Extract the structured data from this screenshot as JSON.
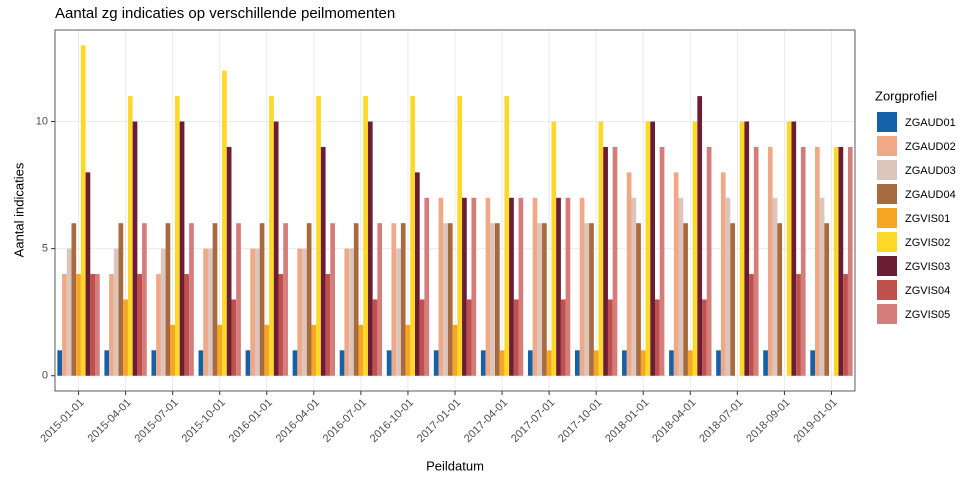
{
  "chart_data": {
    "type": "bar",
    "title": "Aantal zg indicaties op verschillende peilmomenten",
    "x_label": "Peildatum",
    "y_label": "Aantal indicaties",
    "legend_title": "Zorgprofiel",
    "categories": [
      "2015-01-01",
      "2015-04-01",
      "2015-07-01",
      "2015-10-01",
      "2016-01-01",
      "2016-04-01",
      "2016-07-01",
      "2016-10-01",
      "2017-01-01",
      "2017-04-01",
      "2017-07-01",
      "2017-10-01",
      "2018-01-01",
      "2018-04-01",
      "2018-07-01",
      "2018-09-01",
      "2019-01-01"
    ],
    "series": [
      {
        "name": "ZGAUD01",
        "color": "#1461a8",
        "values": [
          1,
          1,
          1,
          1,
          1,
          1,
          1,
          1,
          1,
          1,
          1,
          1,
          1,
          1,
          1,
          1,
          1
        ]
      },
      {
        "name": "ZGAUD02",
        "color": "#f0a987",
        "values": [
          4,
          4,
          4,
          5,
          5,
          5,
          5,
          6,
          7,
          7,
          7,
          7,
          8,
          8,
          8,
          9,
          9
        ]
      },
      {
        "name": "ZGAUD03",
        "color": "#dcc5bd",
        "values": [
          5,
          5,
          5,
          5,
          5,
          5,
          5,
          5,
          6,
          6,
          6,
          6,
          7,
          7,
          7,
          7,
          7
        ]
      },
      {
        "name": "ZGAUD04",
        "color": "#a86b3f",
        "values": [
          6,
          6,
          6,
          6,
          6,
          6,
          6,
          6,
          6,
          6,
          6,
          6,
          6,
          6,
          6,
          6,
          6
        ]
      },
      {
        "name": "ZGVIS01",
        "color": "#f5a623",
        "values": [
          4,
          3,
          2,
          2,
          2,
          2,
          2,
          2,
          2,
          1,
          1,
          1,
          1,
          1,
          null,
          null,
          null
        ]
      },
      {
        "name": "ZGVIS02",
        "color": "#fcd928",
        "values": [
          13,
          11,
          11,
          12,
          11,
          11,
          11,
          11,
          11,
          11,
          10,
          10,
          10,
          10,
          10,
          10,
          9
        ]
      },
      {
        "name": "ZGVIS03",
        "color": "#6b1d35",
        "values": [
          8,
          10,
          10,
          9,
          10,
          9,
          10,
          8,
          7,
          7,
          7,
          9,
          10,
          11,
          10,
          10,
          9
        ]
      },
      {
        "name": "ZGVIS04",
        "color": "#c0504d",
        "values": [
          4,
          4,
          4,
          3,
          4,
          4,
          3,
          3,
          3,
          3,
          3,
          3,
          3,
          3,
          4,
          4,
          4
        ]
      },
      {
        "name": "ZGVIS05",
        "color": "#d47d7a",
        "values": [
          4,
          6,
          6,
          6,
          6,
          6,
          6,
          7,
          7,
          7,
          7,
          9,
          9,
          9,
          9,
          9,
          9
        ]
      }
    ],
    "ylim": [
      -0.6,
      13.6
    ],
    "yticks": [
      0,
      5,
      10
    ],
    "grid": true,
    "legend": "right"
  }
}
